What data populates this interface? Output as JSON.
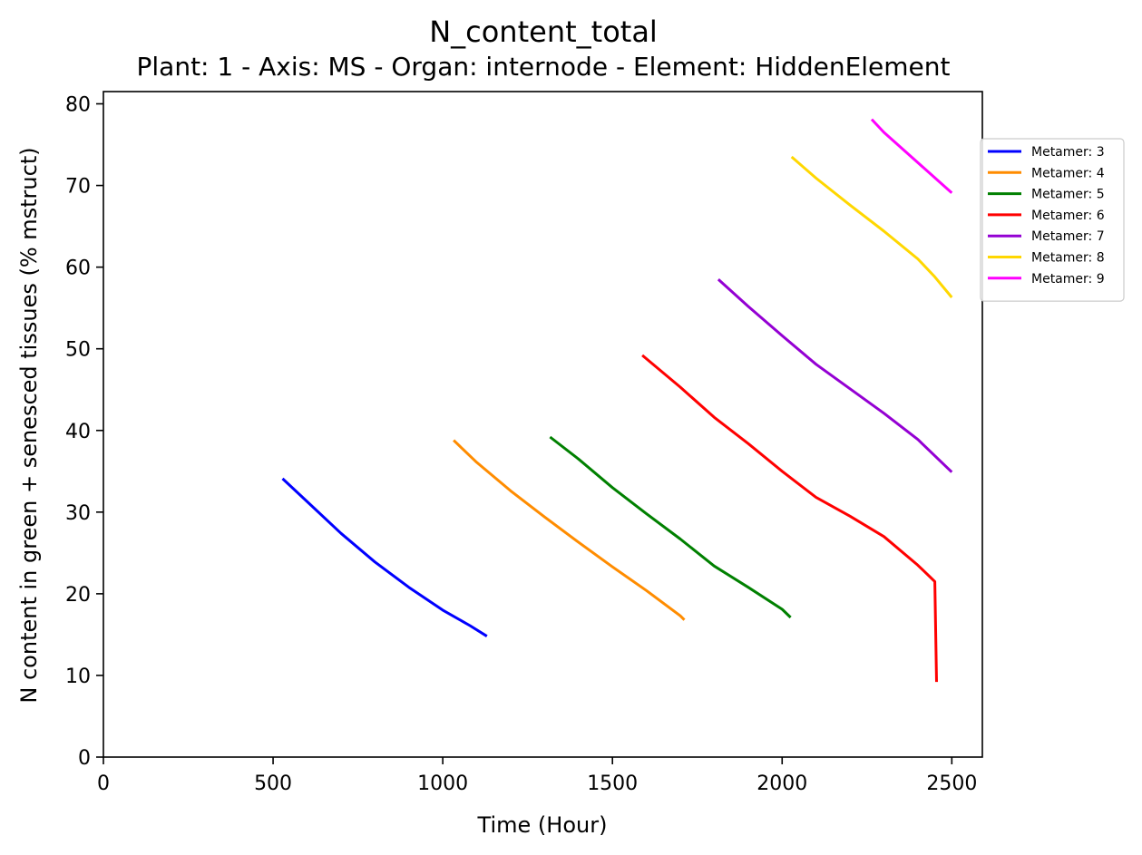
{
  "chart_data": {
    "type": "line",
    "title": "N_content_total",
    "subtitle": "Plant: 1 - Axis: MS - Organ: internode - Element: HiddenElement",
    "xlabel": "Time (Hour)",
    "ylabel": "N content in green + senesced tissues (% mstruct)",
    "xlim": [
      0,
      2590
    ],
    "ylim": [
      0,
      81.5
    ],
    "xticks": [
      0,
      500,
      1000,
      1500,
      2000,
      2500
    ],
    "yticks": [
      0,
      10,
      20,
      30,
      40,
      50,
      60,
      70,
      80
    ],
    "grid": false,
    "legend_position": "right-outside-top",
    "series": [
      {
        "name": "Metamer: 3",
        "color": "#0000ff",
        "points": [
          [
            528,
            34.1
          ],
          [
            600,
            31.3
          ],
          [
            700,
            27.4
          ],
          [
            800,
            23.9
          ],
          [
            900,
            20.8
          ],
          [
            1000,
            18.0
          ],
          [
            1080,
            16.1
          ],
          [
            1130,
            14.8
          ]
        ]
      },
      {
        "name": "Metamer: 4",
        "color": "#ff8c00",
        "points": [
          [
            1032,
            38.8
          ],
          [
            1100,
            36.1
          ],
          [
            1200,
            32.6
          ],
          [
            1300,
            29.4
          ],
          [
            1400,
            26.3
          ],
          [
            1500,
            23.3
          ],
          [
            1600,
            20.4
          ],
          [
            1700,
            17.3
          ],
          [
            1712,
            16.8
          ]
        ]
      },
      {
        "name": "Metamer: 5",
        "color": "#008000",
        "points": [
          [
            1316,
            39.2
          ],
          [
            1400,
            36.5
          ],
          [
            1500,
            33.0
          ],
          [
            1600,
            29.8
          ],
          [
            1700,
            26.7
          ],
          [
            1800,
            23.4
          ],
          [
            1900,
            20.8
          ],
          [
            2000,
            18.1
          ],
          [
            2025,
            17.1
          ]
        ]
      },
      {
        "name": "Metamer: 6",
        "color": "#ff0000",
        "points": [
          [
            1588,
            49.2
          ],
          [
            1700,
            45.3
          ],
          [
            1800,
            41.6
          ],
          [
            1900,
            38.4
          ],
          [
            2000,
            35.0
          ],
          [
            2100,
            31.8
          ],
          [
            2200,
            29.5
          ],
          [
            2300,
            27.0
          ],
          [
            2400,
            23.5
          ],
          [
            2450,
            21.5
          ],
          [
            2455,
            9.2
          ]
        ]
      },
      {
        "name": "Metamer: 7",
        "color": "#9400d3",
        "points": [
          [
            1812,
            58.5
          ],
          [
            1900,
            55.2
          ],
          [
            2000,
            51.6
          ],
          [
            2100,
            48.1
          ],
          [
            2200,
            45.1
          ],
          [
            2300,
            42.1
          ],
          [
            2400,
            38.9
          ],
          [
            2500,
            34.9
          ]
        ]
      },
      {
        "name": "Metamer: 8",
        "color": "#ffd700",
        "points": [
          [
            2028,
            73.5
          ],
          [
            2100,
            70.9
          ],
          [
            2200,
            67.6
          ],
          [
            2300,
            64.4
          ],
          [
            2400,
            61.0
          ],
          [
            2450,
            58.8
          ],
          [
            2500,
            56.3
          ]
        ]
      },
      {
        "name": "Metamer: 9",
        "color": "#ff00ff",
        "points": [
          [
            2264,
            78.1
          ],
          [
            2300,
            76.5
          ],
          [
            2400,
            72.8
          ],
          [
            2500,
            69.1
          ]
        ]
      }
    ]
  }
}
